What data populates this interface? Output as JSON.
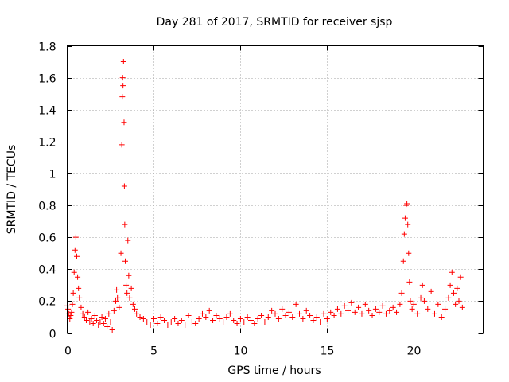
{
  "chart_data": {
    "type": "scatter",
    "title": "Day 281 of 2017, SRMTID for receiver sjsp",
    "xlabel": "GPS time / hours",
    "ylabel": "SRMTID / TECUs",
    "xlim": [
      0,
      24
    ],
    "ylim": [
      0,
      1.8
    ],
    "xticks": [
      0,
      5,
      10,
      15,
      20
    ],
    "xtick_labels": [
      "0",
      "5",
      "10",
      "15",
      "20"
    ],
    "yticks": [
      0,
      0.2,
      0.4,
      0.6,
      0.8,
      1,
      1.2,
      1.4,
      1.6,
      1.8
    ],
    "ytick_labels": [
      "0",
      "0.2",
      "0.4",
      "0.6",
      "0.8",
      "1",
      "1.2",
      "1.4",
      "1.6",
      "1.8"
    ],
    "grid": true,
    "marker": "+",
    "color": "#ff0000",
    "series": [
      {
        "name": "SRMTID",
        "points": [
          [
            0.0,
            0.17
          ],
          [
            0.05,
            0.15
          ],
          [
            0.1,
            0.12
          ],
          [
            0.15,
            0.09
          ],
          [
            0.2,
            0.11
          ],
          [
            0.25,
            0.13
          ],
          [
            0.3,
            0.18
          ],
          [
            0.35,
            0.25
          ],
          [
            0.4,
            0.38
          ],
          [
            0.45,
            0.52
          ],
          [
            0.5,
            0.6
          ],
          [
            0.55,
            0.48
          ],
          [
            0.6,
            0.35
          ],
          [
            0.65,
            0.28
          ],
          [
            0.7,
            0.22
          ],
          [
            0.8,
            0.16
          ],
          [
            0.9,
            0.12
          ],
          [
            1.0,
            0.1
          ],
          [
            1.1,
            0.08
          ],
          [
            1.2,
            0.13
          ],
          [
            1.3,
            0.07
          ],
          [
            1.4,
            0.09
          ],
          [
            1.5,
            0.06
          ],
          [
            1.6,
            0.11
          ],
          [
            1.7,
            0.08
          ],
          [
            1.8,
            0.05
          ],
          [
            1.9,
            0.07
          ],
          [
            2.0,
            0.1
          ],
          [
            2.1,
            0.06
          ],
          [
            2.2,
            0.09
          ],
          [
            2.3,
            0.04
          ],
          [
            2.4,
            0.12
          ],
          [
            2.5,
            0.07
          ],
          [
            2.6,
            0.02
          ],
          [
            2.7,
            0.14
          ],
          [
            2.8,
            0.2
          ],
          [
            2.85,
            0.27
          ],
          [
            2.9,
            0.22
          ],
          [
            3.0,
            0.16
          ],
          [
            3.1,
            0.5
          ],
          [
            3.15,
            1.18
          ],
          [
            3.18,
            1.48
          ],
          [
            3.2,
            1.6
          ],
          [
            3.22,
            1.55
          ],
          [
            3.25,
            1.7
          ],
          [
            3.28,
            1.32
          ],
          [
            3.3,
            0.92
          ],
          [
            3.32,
            0.68
          ],
          [
            3.35,
            0.45
          ],
          [
            3.4,
            0.3
          ],
          [
            3.45,
            0.25
          ],
          [
            3.5,
            0.58
          ],
          [
            3.55,
            0.36
          ],
          [
            3.6,
            0.22
          ],
          [
            3.7,
            0.28
          ],
          [
            3.8,
            0.18
          ],
          [
            3.9,
            0.15
          ],
          [
            4.0,
            0.12
          ],
          [
            4.2,
            0.1
          ],
          [
            4.4,
            0.09
          ],
          [
            4.6,
            0.07
          ],
          [
            4.8,
            0.05
          ],
          [
            5.0,
            0.09
          ],
          [
            5.2,
            0.06
          ],
          [
            5.4,
            0.1
          ],
          [
            5.6,
            0.08
          ],
          [
            5.8,
            0.05
          ],
          [
            6.0,
            0.07
          ],
          [
            6.2,
            0.09
          ],
          [
            6.4,
            0.06
          ],
          [
            6.6,
            0.08
          ],
          [
            6.8,
            0.05
          ],
          [
            7.0,
            0.11
          ],
          [
            7.2,
            0.07
          ],
          [
            7.4,
            0.06
          ],
          [
            7.6,
            0.09
          ],
          [
            7.8,
            0.12
          ],
          [
            8.0,
            0.1
          ],
          [
            8.2,
            0.14
          ],
          [
            8.4,
            0.08
          ],
          [
            8.6,
            0.11
          ],
          [
            8.8,
            0.09
          ],
          [
            9.0,
            0.07
          ],
          [
            9.2,
            0.1
          ],
          [
            9.4,
            0.12
          ],
          [
            9.6,
            0.08
          ],
          [
            9.8,
            0.06
          ],
          [
            10.0,
            0.09
          ],
          [
            10.2,
            0.07
          ],
          [
            10.4,
            0.1
          ],
          [
            10.6,
            0.08
          ],
          [
            10.8,
            0.06
          ],
          [
            11.0,
            0.09
          ],
          [
            11.2,
            0.11
          ],
          [
            11.4,
            0.07
          ],
          [
            11.6,
            0.1
          ],
          [
            11.8,
            0.14
          ],
          [
            12.0,
            0.12
          ],
          [
            12.2,
            0.09
          ],
          [
            12.4,
            0.15
          ],
          [
            12.6,
            0.11
          ],
          [
            12.8,
            0.13
          ],
          [
            13.0,
            0.1
          ],
          [
            13.2,
            0.18
          ],
          [
            13.4,
            0.12
          ],
          [
            13.6,
            0.09
          ],
          [
            13.8,
            0.14
          ],
          [
            14.0,
            0.11
          ],
          [
            14.2,
            0.08
          ],
          [
            14.4,
            0.1
          ],
          [
            14.6,
            0.07
          ],
          [
            14.8,
            0.12
          ],
          [
            15.0,
            0.09
          ],
          [
            15.2,
            0.13
          ],
          [
            15.4,
            0.11
          ],
          [
            15.6,
            0.15
          ],
          [
            15.8,
            0.12
          ],
          [
            16.0,
            0.17
          ],
          [
            16.2,
            0.14
          ],
          [
            16.4,
            0.19
          ],
          [
            16.6,
            0.13
          ],
          [
            16.8,
            0.16
          ],
          [
            17.0,
            0.12
          ],
          [
            17.2,
            0.18
          ],
          [
            17.4,
            0.14
          ],
          [
            17.6,
            0.11
          ],
          [
            17.8,
            0.15
          ],
          [
            18.0,
            0.13
          ],
          [
            18.2,
            0.17
          ],
          [
            18.4,
            0.12
          ],
          [
            18.6,
            0.14
          ],
          [
            18.8,
            0.16
          ],
          [
            19.0,
            0.13
          ],
          [
            19.2,
            0.18
          ],
          [
            19.3,
            0.25
          ],
          [
            19.4,
            0.45
          ],
          [
            19.45,
            0.62
          ],
          [
            19.5,
            0.72
          ],
          [
            19.55,
            0.8
          ],
          [
            19.6,
            0.81
          ],
          [
            19.65,
            0.68
          ],
          [
            19.7,
            0.5
          ],
          [
            19.75,
            0.32
          ],
          [
            19.8,
            0.2
          ],
          [
            19.9,
            0.15
          ],
          [
            20.0,
            0.18
          ],
          [
            20.2,
            0.12
          ],
          [
            20.4,
            0.22
          ],
          [
            20.5,
            0.3
          ],
          [
            20.6,
            0.2
          ],
          [
            20.8,
            0.15
          ],
          [
            21.0,
            0.26
          ],
          [
            21.2,
            0.12
          ],
          [
            21.4,
            0.18
          ],
          [
            21.6,
            0.1
          ],
          [
            21.8,
            0.15
          ],
          [
            22.0,
            0.22
          ],
          [
            22.1,
            0.3
          ],
          [
            22.2,
            0.38
          ],
          [
            22.3,
            0.25
          ],
          [
            22.4,
            0.18
          ],
          [
            22.5,
            0.28
          ],
          [
            22.6,
            0.2
          ],
          [
            22.7,
            0.35
          ],
          [
            22.8,
            0.16
          ]
        ]
      }
    ]
  }
}
